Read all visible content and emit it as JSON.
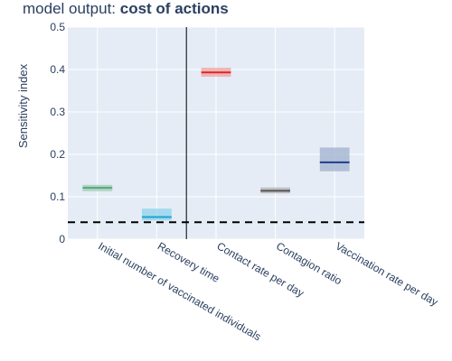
{
  "chart_data": {
    "type": "box",
    "title_prefix": "model output: ",
    "title_bold": "cost of actions",
    "ylabel": "Sensitivity index",
    "xlabel": "",
    "ylim": [
      0,
      0.5
    ],
    "yticks": [
      0,
      0.1,
      0.2,
      0.3,
      0.4,
      0.5
    ],
    "ytick_labels": [
      "0",
      "0.1",
      "0.2",
      "0.3",
      "0.4",
      "0.5"
    ],
    "categories": [
      "Initial number of vaccinated individuals",
      "Recovery time",
      "Contact rate per day",
      "Contagion ratio",
      "Vaccination rate per day"
    ],
    "series": [
      {
        "median": 0.121,
        "low": 0.113,
        "high": 0.128,
        "fill": "#9ecfb7",
        "line": "#5aa577"
      },
      {
        "median": 0.052,
        "low": 0.044,
        "high": 0.072,
        "fill": "#8fd3ea",
        "line": "#1ba3d6"
      },
      {
        "median": 0.393,
        "low": 0.383,
        "high": 0.404,
        "fill": "#f0a0a0",
        "line": "#e02424"
      },
      {
        "median": 0.114,
        "low": 0.108,
        "high": 0.122,
        "fill": "#b3b3b3",
        "line": "#555555"
      },
      {
        "median": 0.181,
        "low": 0.16,
        "high": 0.216,
        "fill": "#9fb1ce",
        "line": "#1e3f8a"
      }
    ],
    "threshold": 0.04,
    "separator_after_category": 1,
    "grid": true,
    "legend": "none",
    "colors": {
      "plot_bg": "#e5ecf6",
      "grid": "#ffffff",
      "text": "#2a3f5f",
      "threshold": "#000000",
      "separator": "#000000"
    }
  }
}
